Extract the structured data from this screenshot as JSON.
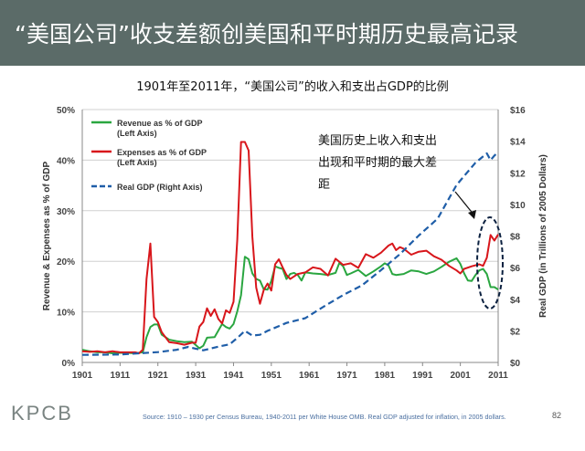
{
  "slide": {
    "title": "“美国公司”收支差额创美国和平时期历史最高记录",
    "subtitle": "1901年至2011年，“美国公司”的收入和支出占GDP的比例",
    "logo": "KPCB",
    "source": "Source: 1910 – 1930 per Census Bureau, 1940-2011 per White House OMB. Real GDP adjusted for inflation, in 2005 dollars.",
    "page_number": "82"
  },
  "chart_data": {
    "type": "line",
    "xlim": [
      1901,
      2011
    ],
    "x_ticks": [
      "1901",
      "1911",
      "1921",
      "1931",
      "1941",
      "1951",
      "1961",
      "1971",
      "1981",
      "1991",
      "2001",
      "2011"
    ],
    "y_left": {
      "label": "Revenue & Expenses as % of GDP",
      "range": [
        0,
        50
      ],
      "ticks": [
        "0%",
        "10%",
        "20%",
        "30%",
        "40%",
        "50%"
      ]
    },
    "y_right": {
      "label": "Real GDP (in Trillions of 2005 Dollars)",
      "range": [
        0,
        16
      ],
      "ticks": [
        "$0",
        "$2",
        "$4",
        "$6",
        "$8",
        "$10",
        "$12",
        "$14",
        "$16"
      ]
    },
    "legend": [
      {
        "label": "Revenue as % of GDP",
        "sub": "(Left Axis)",
        "color": "#2aa640",
        "style": "solid"
      },
      {
        "label": "Expenses as % of GDP",
        "sub": "(Left Axis)",
        "color": "#d8161b",
        "style": "solid"
      },
      {
        "label": "Real GDP (Right Axis)",
        "sub": "",
        "color": "#1f5ea8",
        "style": "dashed"
      }
    ],
    "annotation": {
      "lines": [
        "美国历史上收入和支出",
        "出现和平时期的最大差",
        "距"
      ]
    },
    "series": [
      {
        "name": "Revenue as % of GDP",
        "axis": "left",
        "color": "#2aa640",
        "x": [
          1901,
          1903,
          1905,
          1907,
          1909,
          1911,
          1913,
          1915,
          1917,
          1918,
          1919,
          1920,
          1921,
          1922,
          1924,
          1926,
          1928,
          1930,
          1932,
          1933,
          1934,
          1936,
          1938,
          1939,
          1940,
          1941,
          1942,
          1943,
          1944,
          1945,
          1946,
          1947,
          1948,
          1949,
          1950,
          1951,
          1952,
          1953,
          1954,
          1955,
          1956,
          1957,
          1958,
          1959,
          1960,
          1962,
          1964,
          1966,
          1968,
          1969,
          1970,
          1971,
          1972,
          1974,
          1976,
          1978,
          1980,
          1981,
          1982,
          1983,
          1984,
          1986,
          1988,
          1990,
          1992,
          1994,
          1996,
          1998,
          2000,
          2001,
          2002,
          2003,
          2004,
          2005,
          2006,
          2007,
          2008,
          2009,
          2010,
          2011
        ],
        "values": [
          2.5,
          2.2,
          2.0,
          2.0,
          1.8,
          1.9,
          1.9,
          1.8,
          2.0,
          5.0,
          7.0,
          7.5,
          7.5,
          5.5,
          4.5,
          4.2,
          4.0,
          4.1,
          2.8,
          3.3,
          4.9,
          5.0,
          7.6,
          7.0,
          6.7,
          7.6,
          10.1,
          13.3,
          20.9,
          20.4,
          17.6,
          16.5,
          16.2,
          14.5,
          14.4,
          16.1,
          19.0,
          18.7,
          18.5,
          16.5,
          17.5,
          17.7,
          17.3,
          16.2,
          17.8,
          17.6,
          17.5,
          17.3,
          17.7,
          19.7,
          19.0,
          17.3,
          17.6,
          18.3,
          17.1,
          18.0,
          19.0,
          19.6,
          19.2,
          17.5,
          17.3,
          17.5,
          18.2,
          18.0,
          17.5,
          18.0,
          18.9,
          19.9,
          20.6,
          19.5,
          17.6,
          16.2,
          16.1,
          17.3,
          18.2,
          18.5,
          17.5,
          14.9,
          14.9,
          14.4
        ]
      },
      {
        "name": "Expenses as % of GDP",
        "axis": "left",
        "color": "#d8161b",
        "x": [
          1901,
          1903,
          1905,
          1907,
          1909,
          1911,
          1913,
          1915,
          1916,
          1917,
          1918,
          1919,
          1920,
          1921,
          1922,
          1924,
          1926,
          1928,
          1930,
          1931,
          1932,
          1933,
          1934,
          1935,
          1936,
          1937,
          1938,
          1939,
          1940,
          1941,
          1942,
          1943,
          1944,
          1945,
          1946,
          1947,
          1948,
          1949,
          1950,
          1951,
          1952,
          1953,
          1954,
          1955,
          1956,
          1958,
          1960,
          1962,
          1964,
          1966,
          1968,
          1970,
          1972,
          1974,
          1976,
          1978,
          1980,
          1982,
          1983,
          1984,
          1985,
          1986,
          1988,
          1990,
          1992,
          1994,
          1996,
          1998,
          2000,
          2001,
          2002,
          2004,
          2006,
          2007,
          2008,
          2009,
          2010,
          2011
        ],
        "values": [
          2.2,
          2.1,
          2.2,
          2.0,
          2.2,
          2.0,
          2.0,
          2.0,
          1.8,
          2.5,
          16.5,
          23.5,
          9.0,
          8.0,
          6.0,
          4.0,
          3.8,
          3.5,
          3.9,
          3.9,
          7.1,
          8.0,
          10.7,
          9.2,
          10.5,
          8.6,
          7.7,
          10.3,
          9.8,
          12.0,
          24.3,
          43.6,
          43.6,
          41.9,
          24.8,
          14.8,
          11.6,
          14.3,
          15.6,
          14.2,
          19.4,
          20.4,
          18.8,
          17.3,
          16.5,
          17.5,
          17.8,
          18.8,
          18.5,
          17.2,
          20.5,
          19.3,
          19.6,
          18.7,
          21.4,
          20.7,
          21.7,
          23.1,
          23.5,
          22.2,
          22.8,
          22.5,
          21.3,
          21.9,
          22.1,
          21.0,
          20.3,
          19.1,
          18.2,
          17.6,
          18.5,
          19.0,
          19.4,
          19.1,
          20.7,
          25.2,
          24.1,
          25.3
        ]
      },
      {
        "name": "Real GDP",
        "axis": "right",
        "color": "#1f5ea8",
        "dashed": true,
        "x": [
          1901,
          1911,
          1921,
          1926,
          1929,
          1931,
          1933,
          1937,
          1940,
          1942,
          1944,
          1946,
          1948,
          1950,
          1955,
          1960,
          1965,
          1970,
          1975,
          1980,
          1985,
          1990,
          1995,
          2000,
          2005,
          2008,
          2009,
          2010,
          2011
        ],
        "values": [
          0.48,
          0.5,
          0.65,
          0.8,
          0.98,
          0.87,
          0.77,
          1.0,
          1.15,
          1.55,
          2.0,
          1.7,
          1.75,
          2.0,
          2.5,
          2.8,
          3.55,
          4.26,
          4.88,
          5.84,
          6.85,
          8.03,
          9.1,
          11.23,
          12.64,
          13.23,
          12.8,
          13.09,
          13.3
        ]
      }
    ]
  }
}
